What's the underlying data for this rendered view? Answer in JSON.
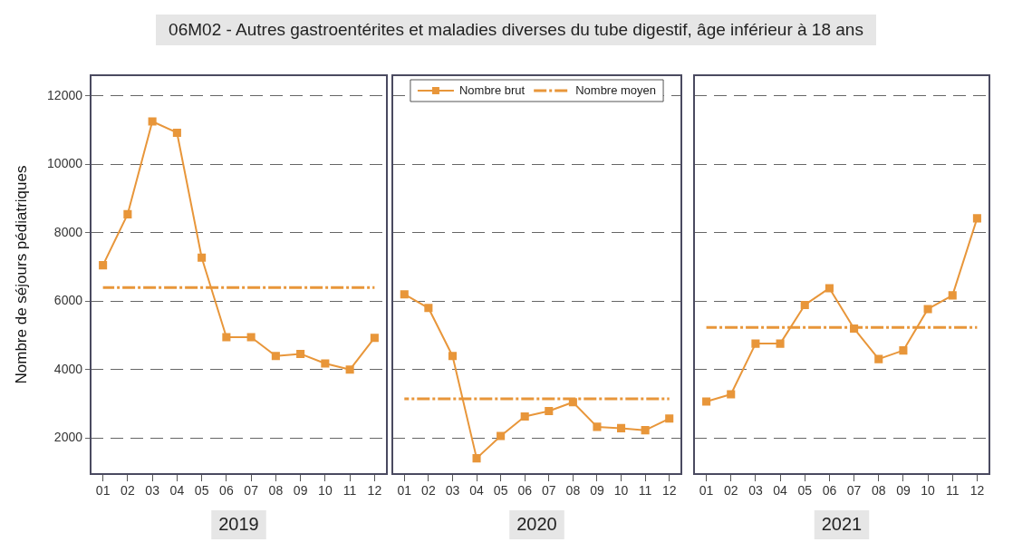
{
  "chart_data": [
    {
      "type": "line",
      "ylabel": "Nombre de séjours pédiatriques",
      "xlabel": "2019",
      "categories": [
        "01",
        "02",
        "03",
        "04",
        "05",
        "06",
        "07",
        "08",
        "09",
        "10",
        "11",
        "12"
      ],
      "ylim": [
        950,
        12600
      ],
      "yticks": [
        2000,
        4000,
        6000,
        8000,
        10000,
        12000
      ],
      "grid": "y",
      "legend": false,
      "series": [
        {
          "color": "#e8963a",
          "marker": "square",
          "line_style": "solid",
          "values": [
            7050,
            8540,
            11250,
            10920,
            7270,
            4950,
            4950,
            4400,
            4460,
            4180,
            4000,
            4930
          ]
        },
        {
          "color": "#e8963a",
          "marker": "none",
          "line_style": "dashed",
          "values": [
            6400,
            6400,
            6400,
            6400,
            6400,
            6400,
            6400,
            6400,
            6400,
            6400,
            6400,
            6400
          ]
        }
      ]
    },
    {
      "type": "line",
      "title": "06M02 - Autres gastroentérites et maladies diverses du tube digestif, âge inférieur à 18 ans",
      "xlabel": "2020",
      "categories": [
        "01",
        "02",
        "03",
        "04",
        "05",
        "06",
        "07",
        "08",
        "09",
        "10",
        "11",
        "12"
      ],
      "ylim": [
        950,
        12600
      ],
      "yticks": [
        2000,
        4000,
        6000,
        8000,
        10000,
        12000
      ],
      "tick_labels": "x",
      "grid": "y",
      "legend": "top",
      "series": [
        {
          "name": "Nombre brut",
          "color": "#e8963a",
          "marker": "square",
          "line_style": "solid",
          "values": [
            6200,
            5800,
            4400,
            1410,
            2060,
            2630,
            2790,
            3050,
            2330,
            2290,
            2230,
            2570
          ]
        },
        {
          "name": "Nombre moyen",
          "color": "#e8963a",
          "marker": "none",
          "line_style": "dashed",
          "values": [
            3150,
            3150,
            3150,
            3150,
            3150,
            3150,
            3150,
            3150,
            3150,
            3150,
            3150,
            3150
          ]
        }
      ]
    },
    {
      "type": "line",
      "xlabel": "2021",
      "categories": [
        "01",
        "02",
        "03",
        "04",
        "05",
        "06",
        "07",
        "08",
        "09",
        "10",
        "11",
        "12"
      ],
      "ylim": [
        950,
        12600
      ],
      "yticks": [
        2000,
        4000,
        6000,
        8000,
        10000,
        12000
      ],
      "tick_labels": "x",
      "grid": "y",
      "legend": false,
      "series": [
        {
          "color": "#e8963a",
          "marker": "square",
          "line_style": "solid",
          "values": [
            3070,
            3280,
            4760,
            4760,
            5890,
            6380,
            5200,
            4310,
            4560,
            5770,
            6170,
            8420
          ]
        },
        {
          "color": "#e8963a",
          "marker": "none",
          "line_style": "dashed",
          "values": [
            5230,
            5230,
            5230,
            5230,
            5230,
            5230,
            5230,
            5230,
            5230,
            5230,
            5230,
            5230
          ]
        }
      ]
    }
  ]
}
